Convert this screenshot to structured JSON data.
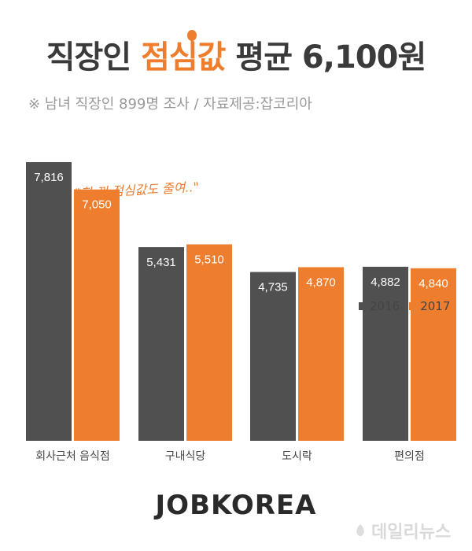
{
  "header": {
    "title_pre": "직장인 ",
    "title_highlight": "점심값",
    "title_post": " 평균 6,100원",
    "subtitle": "※ 남녀 직장인 899명 조사  / 자료제공:잡코리아"
  },
  "annotation": "\"한 끼 점심값도 줄여..\"",
  "brand": "JOBKOREA",
  "watermark": "데일리뉴스",
  "colors": {
    "y2016": "#505050",
    "y2017": "#ee7d2e",
    "title": "#3a3a3a",
    "accent": "#ee7d2e"
  },
  "icons": {
    "spoon": "spoon-icon"
  },
  "chart_data": {
    "type": "bar",
    "categories": [
      "회사근처 음식점",
      "구내식당",
      "도시락",
      "편의점"
    ],
    "series": [
      {
        "name": "2016",
        "values": [
          7816,
          5431,
          4735,
          4882
        ],
        "labels": [
          "7,816",
          "5,431",
          "4,735",
          "4,882"
        ]
      },
      {
        "name": "2017",
        "values": [
          7050,
          5510,
          4870,
          4840
        ],
        "labels": [
          "7,050",
          "5,510",
          "4,870",
          "4,840"
        ]
      }
    ],
    "ylim": [
      0,
      7816
    ],
    "grid": false,
    "legend_position": "right"
  }
}
